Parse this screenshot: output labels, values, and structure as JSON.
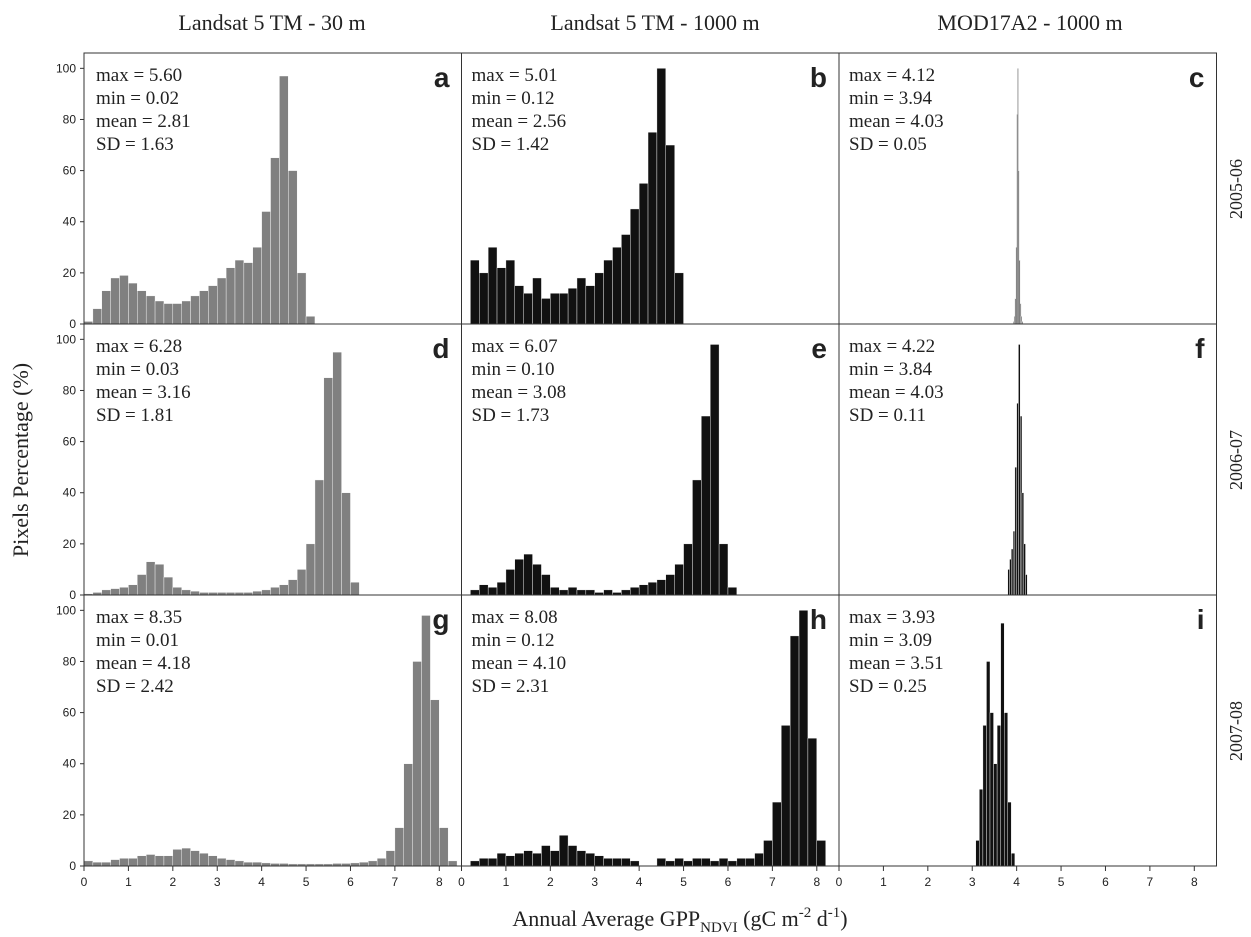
{
  "figure": {
    "column_titles": [
      "Landsat 5 TM - 30 m",
      "Landsat 5 TM - 1000 m",
      "MOD17A2 - 1000 m"
    ],
    "row_labels": [
      "2005-06",
      "2006-07",
      "2007-08"
    ],
    "ylabel": "Pixels Percentage (%)",
    "xlabel_parts": [
      "Annual Average GPP",
      "NDVI",
      " (gC m",
      "-2",
      " d",
      "-1",
      ")"
    ]
  },
  "chart_data": [
    {
      "type": "histogram",
      "label": "a",
      "color": "#808080",
      "annotations": [
        "max = 5.60",
        "min = 0.02",
        "mean = 2.81",
        "SD = 1.63"
      ],
      "xlim": [
        0,
        8.5
      ],
      "ylim": [
        0,
        106
      ],
      "yticks": [
        0,
        20,
        40,
        60,
        80,
        100
      ],
      "bins": [
        0,
        0.2,
        0.4,
        0.6,
        0.8,
        1,
        1.2,
        1.4,
        1.6,
        1.8,
        2,
        2.2,
        2.4,
        2.6,
        2.8,
        3,
        3.2,
        3.4,
        3.6,
        3.8,
        4,
        4.2,
        4.4,
        4.6,
        4.8,
        5,
        5.2
      ],
      "values": [
        1,
        6,
        13,
        18,
        19,
        16,
        13,
        11,
        9,
        8,
        8,
        9,
        11,
        13,
        15,
        18,
        22,
        25,
        24,
        30,
        44,
        65,
        97,
        60,
        20,
        3
      ]
    },
    {
      "type": "histogram",
      "label": "b",
      "color": "#111111",
      "annotations": [
        "max = 5.01",
        "min = 0.12",
        "mean = 2.56",
        "SD = 1.42"
      ],
      "xlim": [
        0,
        8.5
      ],
      "ylim": [
        0,
        106
      ],
      "bins": [
        0,
        0.2,
        0.4,
        0.6,
        0.8,
        1,
        1.2,
        1.4,
        1.6,
        1.8,
        2,
        2.2,
        2.4,
        2.6,
        2.8,
        3,
        3.2,
        3.4,
        3.6,
        3.8,
        4,
        4.2,
        4.4,
        4.6,
        4.8,
        5
      ],
      "values": [
        0,
        25,
        20,
        30,
        22,
        25,
        15,
        12,
        18,
        10,
        12,
        12,
        14,
        18,
        15,
        20,
        25,
        30,
        35,
        45,
        55,
        75,
        100,
        70,
        20
      ]
    },
    {
      "type": "histogram",
      "label": "c",
      "color": "#111111",
      "annotations": [
        "max = 4.12",
        "min = 3.94",
        "mean = 4.03",
        "SD = 0.05"
      ],
      "xlim": [
        0,
        8.5
      ],
      "ylim": [
        0,
        106
      ],
      "bins": [
        3.92,
        3.94,
        3.96,
        3.98,
        4,
        4.02,
        4.04,
        4.06,
        4.08,
        4.1,
        4.12,
        4.14
      ],
      "values": [
        1,
        3,
        10,
        30,
        82,
        100,
        60,
        25,
        8,
        3,
        1
      ]
    },
    {
      "type": "histogram",
      "label": "d",
      "color": "#808080",
      "annotations": [
        "max = 6.28",
        "min = 0.03",
        "mean = 3.16",
        "SD = 1.81"
      ],
      "xlim": [
        0,
        8.5
      ],
      "ylim": [
        0,
        106
      ],
      "yticks": [
        0,
        20,
        40,
        60,
        80,
        100
      ],
      "bins": [
        0,
        0.2,
        0.4,
        0.6,
        0.8,
        1,
        1.2,
        1.4,
        1.6,
        1.8,
        2,
        2.2,
        2.4,
        2.6,
        2.8,
        3,
        3.2,
        3.4,
        3.6,
        3.8,
        4,
        4.2,
        4.4,
        4.6,
        4.8,
        5,
        5.2,
        5.4,
        5.6,
        5.8,
        6,
        6.2
      ],
      "values": [
        0.5,
        1,
        2,
        2.5,
        3,
        4,
        8,
        13,
        12,
        7,
        3,
        2,
        1.5,
        1,
        1,
        1,
        1,
        1,
        1,
        1.5,
        2,
        3,
        4,
        6,
        10,
        20,
        45,
        85,
        95,
        40,
        5
      ]
    },
    {
      "type": "histogram",
      "label": "e",
      "color": "#111111",
      "annotations": [
        "max = 6.07",
        "min = 0.10",
        "mean = 3.08",
        "SD = 1.73"
      ],
      "xlim": [
        0,
        8.5
      ],
      "ylim": [
        0,
        106
      ],
      "bins": [
        0,
        0.2,
        0.4,
        0.6,
        0.8,
        1,
        1.2,
        1.4,
        1.6,
        1.8,
        2,
        2.2,
        2.4,
        2.6,
        2.8,
        3,
        3.2,
        3.4,
        3.6,
        3.8,
        4,
        4.2,
        4.4,
        4.6,
        4.8,
        5,
        5.2,
        5.4,
        5.6,
        5.8,
        6,
        6.2
      ],
      "values": [
        0,
        2,
        4,
        3,
        5,
        10,
        14,
        16,
        12,
        8,
        3,
        2,
        3,
        2,
        2,
        1,
        2,
        1,
        2,
        3,
        4,
        5,
        6,
        8,
        12,
        20,
        45,
        70,
        98,
        20,
        3
      ]
    },
    {
      "type": "histogram",
      "label": "f",
      "color": "#111111",
      "annotations": [
        "max = 4.22",
        "min = 3.84",
        "mean = 4.03",
        "SD = 0.11"
      ],
      "xlim": [
        0,
        8.5
      ],
      "ylim": [
        0,
        106
      ],
      "bins": [
        3.8,
        3.84,
        3.88,
        3.92,
        3.96,
        4,
        4.04,
        4.08,
        4.12,
        4.16,
        4.2,
        4.24
      ],
      "values": [
        10,
        14,
        18,
        25,
        50,
        75,
        98,
        70,
        40,
        20,
        8
      ]
    },
    {
      "type": "histogram",
      "label": "g",
      "color": "#808080",
      "annotations": [
        "max = 8.35",
        "min = 0.01",
        "mean = 4.18",
        "SD = 2.42"
      ],
      "xlim": [
        0,
        8.5
      ],
      "ylim": [
        0,
        106
      ],
      "yticks": [
        0,
        20,
        40,
        60,
        80,
        100
      ],
      "xticks": [
        0,
        1,
        2,
        3,
        4,
        5,
        6,
        7,
        8
      ],
      "bins": [
        0,
        0.2,
        0.4,
        0.6,
        0.8,
        1,
        1.2,
        1.4,
        1.6,
        1.8,
        2,
        2.2,
        2.4,
        2.6,
        2.8,
        3,
        3.2,
        3.4,
        3.6,
        3.8,
        4,
        4.2,
        4.4,
        4.6,
        4.8,
        5,
        5.2,
        5.4,
        5.6,
        5.8,
        6,
        6.2,
        6.4,
        6.6,
        6.8,
        7,
        7.2,
        7.4,
        7.6,
        7.8,
        8,
        8.2,
        8.4
      ],
      "values": [
        2,
        1.5,
        1.5,
        2.5,
        3,
        3,
        4,
        4.5,
        4,
        4,
        6.5,
        7,
        6,
        5,
        4,
        3,
        2.5,
        2,
        1.5,
        1.5,
        1.2,
        1,
        1,
        0.8,
        0.8,
        0.8,
        0.8,
        0.8,
        1,
        1,
        1.2,
        1.5,
        2,
        3,
        6,
        15,
        40,
        80,
        98,
        65,
        15,
        2
      ]
    },
    {
      "type": "histogram",
      "label": "h",
      "color": "#111111",
      "annotations": [
        "max = 8.08",
        "min = 0.12",
        "mean = 4.10",
        "SD = 2.31"
      ],
      "xlim": [
        0,
        8.5
      ],
      "ylim": [
        0,
        106
      ],
      "xticks": [
        0,
        1,
        2,
        3,
        4,
        5,
        6,
        7,
        8
      ],
      "bins": [
        0,
        0.2,
        0.4,
        0.6,
        0.8,
        1,
        1.2,
        1.4,
        1.6,
        1.8,
        2,
        2.2,
        2.4,
        2.6,
        2.8,
        3,
        3.2,
        3.4,
        3.6,
        3.8,
        4,
        4.2,
        4.4,
        4.6,
        4.8,
        5,
        5.2,
        5.4,
        5.6,
        5.8,
        6,
        6.2,
        6.4,
        6.6,
        6.8,
        7,
        7.2,
        7.4,
        7.6,
        7.8,
        8,
        8.2
      ],
      "values": [
        0,
        2,
        3,
        3,
        5,
        4,
        5,
        6,
        5,
        8,
        6,
        12,
        8,
        6,
        5,
        4,
        3,
        3,
        3,
        2,
        0,
        0,
        3,
        2,
        3,
        2,
        3,
        3,
        2,
        3,
        2,
        3,
        3,
        5,
        10,
        25,
        55,
        90,
        100,
        50,
        10
      ]
    },
    {
      "type": "histogram",
      "label": "i",
      "color": "#111111",
      "annotations": [
        "max = 3.93",
        "min = 3.09",
        "mean = 3.51",
        "SD = 0.25"
      ],
      "xlim": [
        0,
        8.5
      ],
      "ylim": [
        0,
        106
      ],
      "xticks": [
        0,
        1,
        2,
        3,
        4,
        5,
        6,
        7,
        8
      ],
      "bins": [
        3.08,
        3.16,
        3.24,
        3.32,
        3.4,
        3.48,
        3.56,
        3.64,
        3.72,
        3.8,
        3.88,
        3.96
      ],
      "values": [
        10,
        30,
        55,
        80,
        60,
        40,
        55,
        95,
        60,
        25,
        5
      ]
    }
  ]
}
